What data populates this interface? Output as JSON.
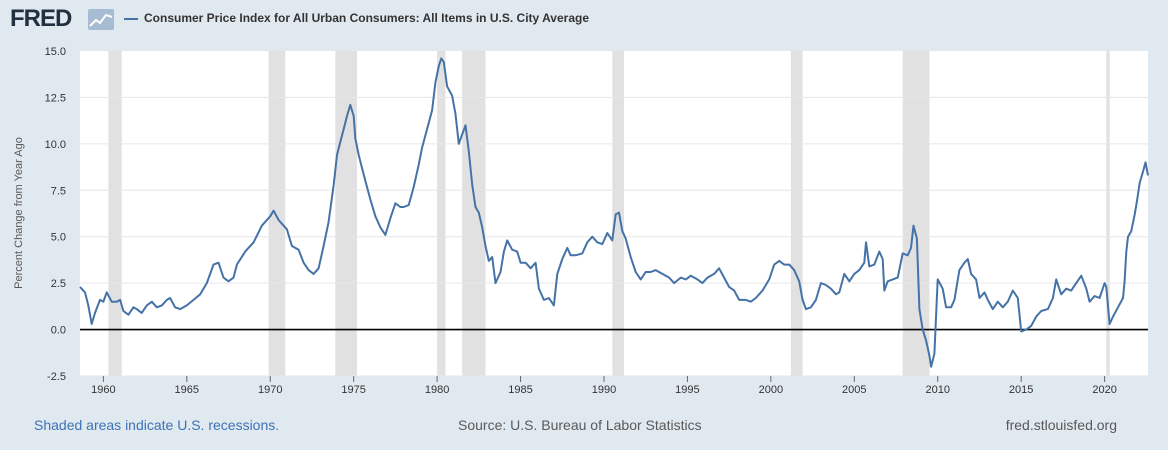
{
  "header": {
    "logo_text": "FRED",
    "logo_icon": "line-chart-icon",
    "series_name": "Consumer Price Index for All Urban Consumers: All Items in U.S. City Average"
  },
  "footer": {
    "recessions_note": "Shaded areas indicate U.S. recessions.",
    "source": "Source: U.S. Bureau of Labor Statistics",
    "website": "fred.stlouisfed.org"
  },
  "colors": {
    "background": "#e1e9f0",
    "plot_background": "#ffffff",
    "line": "#4572a7",
    "recession_band": "#e1e1e1",
    "zero_line": "#000000",
    "logo": "#22313f",
    "link": "#3c72b5"
  },
  "chart_data": {
    "type": "line",
    "title": "",
    "xlabel": "",
    "ylabel": "Percent Change from Year Ago",
    "xlim": [
      1958.6,
      2022.6
    ],
    "ylim": [
      -2.5,
      15.0
    ],
    "yticks": [
      -2.5,
      0.0,
      2.5,
      5.0,
      7.5,
      10.0,
      12.5,
      15.0
    ],
    "ytick_labels": [
      "-2.5",
      "0.0",
      "2.5",
      "5.0",
      "7.5",
      "10.0",
      "12.5",
      "15.0"
    ],
    "xticks": [
      1960,
      1965,
      1970,
      1975,
      1980,
      1985,
      1990,
      1995,
      2000,
      2005,
      2010,
      2015,
      2020
    ],
    "xtick_labels": [
      "1960",
      "1965",
      "1970",
      "1975",
      "1980",
      "1985",
      "1990",
      "1995",
      "2000",
      "2005",
      "2010",
      "2015",
      "2020"
    ],
    "grid": "horizontal",
    "reference_line": 0,
    "recessions": [
      [
        1960.3,
        1961.1
      ],
      [
        1969.9,
        1970.9
      ],
      [
        1973.9,
        1975.2
      ],
      [
        1980.0,
        1980.5
      ],
      [
        1981.5,
        1982.9
      ],
      [
        1990.5,
        1991.2
      ],
      [
        2001.2,
        2001.9
      ],
      [
        2007.9,
        2009.5
      ],
      [
        2020.1,
        2020.3
      ]
    ],
    "series": [
      {
        "name": "Consumer Price Index for All Urban Consumers: All Items in U.S. City Average",
        "points": [
          [
            1958.6,
            2.3
          ],
          [
            1958.9,
            2.0
          ],
          [
            1959.1,
            1.3
          ],
          [
            1959.3,
            0.3
          ],
          [
            1959.5,
            0.9
          ],
          [
            1959.8,
            1.6
          ],
          [
            1960.0,
            1.5
          ],
          [
            1960.2,
            2.0
          ],
          [
            1960.5,
            1.5
          ],
          [
            1960.8,
            1.5
          ],
          [
            1961.0,
            1.6
          ],
          [
            1961.2,
            1.0
          ],
          [
            1961.5,
            0.8
          ],
          [
            1961.8,
            1.2
          ],
          [
            1962.0,
            1.1
          ],
          [
            1962.3,
            0.9
          ],
          [
            1962.6,
            1.3
          ],
          [
            1962.9,
            1.5
          ],
          [
            1963.2,
            1.2
          ],
          [
            1963.5,
            1.3
          ],
          [
            1963.8,
            1.6
          ],
          [
            1964.0,
            1.7
          ],
          [
            1964.3,
            1.2
          ],
          [
            1964.6,
            1.1
          ],
          [
            1965.0,
            1.3
          ],
          [
            1965.4,
            1.6
          ],
          [
            1965.8,
            1.9
          ],
          [
            1966.2,
            2.5
          ],
          [
            1966.6,
            3.5
          ],
          [
            1966.9,
            3.6
          ],
          [
            1967.2,
            2.8
          ],
          [
            1967.5,
            2.6
          ],
          [
            1967.8,
            2.8
          ],
          [
            1968.0,
            3.5
          ],
          [
            1968.5,
            4.2
          ],
          [
            1969.0,
            4.7
          ],
          [
            1969.5,
            5.6
          ],
          [
            1970.0,
            6.1
          ],
          [
            1970.2,
            6.4
          ],
          [
            1970.5,
            5.9
          ],
          [
            1971.0,
            5.4
          ],
          [
            1971.3,
            4.5
          ],
          [
            1971.7,
            4.3
          ],
          [
            1972.0,
            3.6
          ],
          [
            1972.3,
            3.2
          ],
          [
            1972.6,
            3.0
          ],
          [
            1972.9,
            3.3
          ],
          [
            1973.2,
            4.5
          ],
          [
            1973.5,
            5.8
          ],
          [
            1973.8,
            7.8
          ],
          [
            1974.0,
            9.4
          ],
          [
            1974.2,
            10.1
          ],
          [
            1974.4,
            10.8
          ],
          [
            1974.6,
            11.5
          ],
          [
            1974.8,
            12.1
          ],
          [
            1975.0,
            11.5
          ],
          [
            1975.1,
            10.3
          ],
          [
            1975.3,
            9.4
          ],
          [
            1975.5,
            8.7
          ],
          [
            1975.7,
            8.0
          ],
          [
            1976.0,
            7.0
          ],
          [
            1976.3,
            6.1
          ],
          [
            1976.6,
            5.5
          ],
          [
            1976.9,
            5.1
          ],
          [
            1977.2,
            6.0
          ],
          [
            1977.5,
            6.8
          ],
          [
            1977.8,
            6.6
          ],
          [
            1978.0,
            6.6
          ],
          [
            1978.3,
            6.7
          ],
          [
            1978.6,
            7.7
          ],
          [
            1978.9,
            8.9
          ],
          [
            1979.1,
            9.8
          ],
          [
            1979.4,
            10.8
          ],
          [
            1979.7,
            11.8
          ],
          [
            1979.9,
            13.3
          ],
          [
            1980.1,
            14.2
          ],
          [
            1980.25,
            14.6
          ],
          [
            1980.4,
            14.4
          ],
          [
            1980.6,
            13.1
          ],
          [
            1980.9,
            12.6
          ],
          [
            1981.1,
            11.6
          ],
          [
            1981.3,
            10.0
          ],
          [
            1981.5,
            10.5
          ],
          [
            1981.7,
            11.0
          ],
          [
            1981.9,
            9.6
          ],
          [
            1982.1,
            7.8
          ],
          [
            1982.3,
            6.6
          ],
          [
            1982.5,
            6.3
          ],
          [
            1982.7,
            5.5
          ],
          [
            1982.9,
            4.5
          ],
          [
            1983.1,
            3.7
          ],
          [
            1983.3,
            3.9
          ],
          [
            1983.5,
            2.5
          ],
          [
            1983.8,
            3.1
          ],
          [
            1984.0,
            4.2
          ],
          [
            1984.2,
            4.8
          ],
          [
            1984.5,
            4.3
          ],
          [
            1984.8,
            4.2
          ],
          [
            1985.0,
            3.6
          ],
          [
            1985.3,
            3.6
          ],
          [
            1985.6,
            3.3
          ],
          [
            1985.9,
            3.6
          ],
          [
            1986.1,
            2.2
          ],
          [
            1986.4,
            1.6
          ],
          [
            1986.7,
            1.7
          ],
          [
            1987.0,
            1.3
          ],
          [
            1987.2,
            3.0
          ],
          [
            1987.5,
            3.8
          ],
          [
            1987.8,
            4.4
          ],
          [
            1988.0,
            4.0
          ],
          [
            1988.3,
            4.0
          ],
          [
            1988.7,
            4.1
          ],
          [
            1989.0,
            4.7
          ],
          [
            1989.3,
            5.0
          ],
          [
            1989.6,
            4.7
          ],
          [
            1989.9,
            4.6
          ],
          [
            1990.2,
            5.2
          ],
          [
            1990.5,
            4.8
          ],
          [
            1990.7,
            6.2
          ],
          [
            1990.9,
            6.3
          ],
          [
            1991.1,
            5.3
          ],
          [
            1991.3,
            4.9
          ],
          [
            1991.6,
            3.9
          ],
          [
            1991.9,
            3.1
          ],
          [
            1992.2,
            2.7
          ],
          [
            1992.5,
            3.1
          ],
          [
            1992.8,
            3.1
          ],
          [
            1993.1,
            3.2
          ],
          [
            1993.5,
            3.0
          ],
          [
            1993.9,
            2.8
          ],
          [
            1994.2,
            2.5
          ],
          [
            1994.6,
            2.8
          ],
          [
            1994.9,
            2.7
          ],
          [
            1995.2,
            2.9
          ],
          [
            1995.6,
            2.7
          ],
          [
            1995.9,
            2.5
          ],
          [
            1996.2,
            2.8
          ],
          [
            1996.6,
            3.0
          ],
          [
            1996.9,
            3.3
          ],
          [
            1997.2,
            2.8
          ],
          [
            1997.5,
            2.3
          ],
          [
            1997.8,
            2.1
          ],
          [
            1998.1,
            1.6
          ],
          [
            1998.5,
            1.6
          ],
          [
            1998.8,
            1.5
          ],
          [
            1999.1,
            1.7
          ],
          [
            1999.5,
            2.1
          ],
          [
            1999.9,
            2.7
          ],
          [
            2000.2,
            3.5
          ],
          [
            2000.5,
            3.7
          ],
          [
            2000.8,
            3.5
          ],
          [
            2001.1,
            3.5
          ],
          [
            2001.4,
            3.2
          ],
          [
            2001.7,
            2.6
          ],
          [
            2001.9,
            1.6
          ],
          [
            2002.1,
            1.1
          ],
          [
            2002.4,
            1.2
          ],
          [
            2002.7,
            1.6
          ],
          [
            2003.0,
            2.5
          ],
          [
            2003.3,
            2.4
          ],
          [
            2003.6,
            2.2
          ],
          [
            2003.9,
            1.9
          ],
          [
            2004.1,
            2.0
          ],
          [
            2004.4,
            3.0
          ],
          [
            2004.7,
            2.6
          ],
          [
            2005.0,
            3.0
          ],
          [
            2005.3,
            3.2
          ],
          [
            2005.6,
            3.6
          ],
          [
            2005.7,
            4.7
          ],
          [
            2005.9,
            3.4
          ],
          [
            2006.2,
            3.5
          ],
          [
            2006.5,
            4.2
          ],
          [
            2006.7,
            3.8
          ],
          [
            2006.8,
            2.1
          ],
          [
            2007.0,
            2.6
          ],
          [
            2007.3,
            2.7
          ],
          [
            2007.6,
            2.8
          ],
          [
            2007.9,
            4.1
          ],
          [
            2008.2,
            4.0
          ],
          [
            2008.4,
            4.4
          ],
          [
            2008.55,
            5.6
          ],
          [
            2008.75,
            4.9
          ],
          [
            2008.9,
            1.1
          ],
          [
            2009.1,
            0.0
          ],
          [
            2009.3,
            -0.6
          ],
          [
            2009.5,
            -1.4
          ],
          [
            2009.6,
            -2.0
          ],
          [
            2009.8,
            -1.3
          ],
          [
            2010.0,
            2.7
          ],
          [
            2010.3,
            2.2
          ],
          [
            2010.5,
            1.2
          ],
          [
            2010.8,
            1.2
          ],
          [
            2011.0,
            1.6
          ],
          [
            2011.3,
            3.2
          ],
          [
            2011.6,
            3.6
          ],
          [
            2011.8,
            3.8
          ],
          [
            2012.0,
            3.0
          ],
          [
            2012.3,
            2.7
          ],
          [
            2012.5,
            1.7
          ],
          [
            2012.8,
            2.0
          ],
          [
            2013.0,
            1.6
          ],
          [
            2013.3,
            1.1
          ],
          [
            2013.6,
            1.5
          ],
          [
            2013.9,
            1.2
          ],
          [
            2014.2,
            1.5
          ],
          [
            2014.5,
            2.1
          ],
          [
            2014.8,
            1.7
          ],
          [
            2015.0,
            -0.1
          ],
          [
            2015.3,
            0.0
          ],
          [
            2015.6,
            0.2
          ],
          [
            2015.9,
            0.7
          ],
          [
            2016.2,
            1.0
          ],
          [
            2016.6,
            1.1
          ],
          [
            2016.9,
            1.7
          ],
          [
            2017.1,
            2.7
          ],
          [
            2017.4,
            1.9
          ],
          [
            2017.7,
            2.2
          ],
          [
            2018.0,
            2.1
          ],
          [
            2018.3,
            2.5
          ],
          [
            2018.6,
            2.9
          ],
          [
            2018.9,
            2.2
          ],
          [
            2019.1,
            1.5
          ],
          [
            2019.4,
            1.8
          ],
          [
            2019.7,
            1.7
          ],
          [
            2020.0,
            2.5
          ],
          [
            2020.1,
            2.3
          ],
          [
            2020.3,
            0.3
          ],
          [
            2020.5,
            0.7
          ],
          [
            2020.8,
            1.2
          ],
          [
            2021.1,
            1.7
          ],
          [
            2021.2,
            2.6
          ],
          [
            2021.3,
            4.2
          ],
          [
            2021.4,
            5.0
          ],
          [
            2021.6,
            5.3
          ],
          [
            2021.8,
            6.2
          ],
          [
            2021.95,
            7.0
          ],
          [
            2022.1,
            7.9
          ],
          [
            2022.3,
            8.5
          ],
          [
            2022.45,
            9.0
          ],
          [
            2022.6,
            8.3
          ]
        ]
      }
    ]
  }
}
